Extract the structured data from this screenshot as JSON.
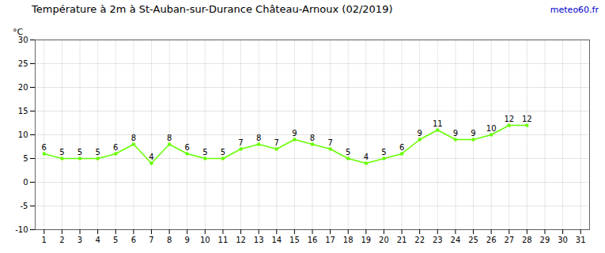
{
  "chart_data": {
    "type": "line",
    "title": "Température à 2m à St-Auban-sur-Durance Château-Arnoux (02/2019)",
    "ylabel": "°C",
    "annotations": [
      {
        "text": "meteo60.fr",
        "color": "#0000cc"
      }
    ],
    "x": [
      1,
      2,
      3,
      4,
      5,
      6,
      7,
      8,
      9,
      10,
      11,
      12,
      13,
      14,
      15,
      16,
      17,
      18,
      19,
      20,
      21,
      22,
      23,
      24,
      25,
      26,
      27,
      28
    ],
    "values": [
      6,
      5,
      5,
      5,
      6,
      8,
      4,
      8,
      6,
      5,
      5,
      7,
      8,
      7,
      9,
      8,
      7,
      5,
      4,
      5,
      6,
      9,
      11,
      9,
      9,
      10,
      12,
      12
    ],
    "color": "#66ff00",
    "marker": "circle",
    "data_labels": true,
    "grid": true,
    "xlim": [
      0.5,
      31.5
    ],
    "xticks": [
      1,
      2,
      3,
      4,
      5,
      6,
      7,
      8,
      9,
      10,
      11,
      12,
      13,
      14,
      15,
      16,
      17,
      18,
      19,
      20,
      21,
      22,
      23,
      24,
      25,
      26,
      27,
      28,
      29,
      30,
      31
    ],
    "ylim": [
      -10,
      30
    ],
    "yticks": [
      -10,
      -5,
      0,
      5,
      10,
      15,
      20,
      25,
      30
    ]
  }
}
